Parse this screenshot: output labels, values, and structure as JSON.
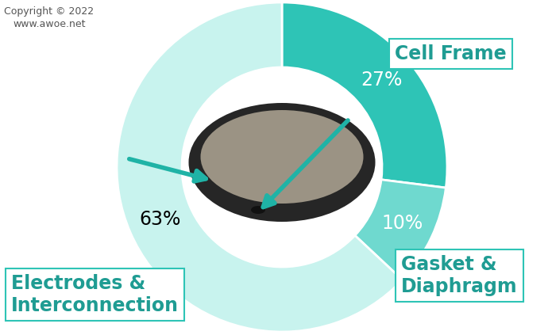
{
  "chart_data": {
    "type": "pie",
    "categories": [
      "Cell Frame",
      "Gasket &\nDiaphragm",
      "Electrodes &\nInterconnection"
    ],
    "values": [
      27,
      10,
      63
    ],
    "value_labels": [
      "27%",
      "10%",
      "63%"
    ],
    "data_labels": true,
    "colors": [
      "#2ec4b6",
      "#6fd9cf",
      "#c8f3ee"
    ],
    "annotations": [
      "Copyright © 2022",
      "www.awoe.net"
    ]
  }
}
